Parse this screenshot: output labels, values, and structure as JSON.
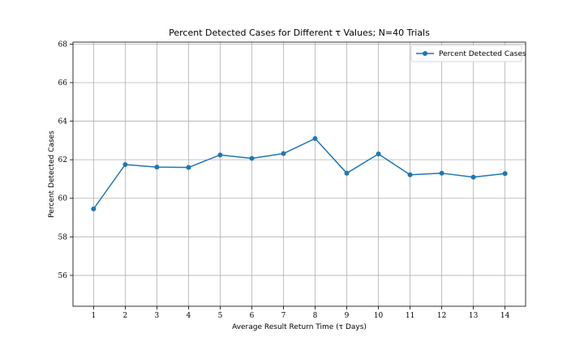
{
  "chart_data": {
    "type": "line",
    "title": "Percent Detected Cases for Different τ Values; N=40 Trials",
    "xlabel": "Average Result Return Time (τ Days)",
    "ylabel": "Percent Detected Cases",
    "x": [
      1,
      2,
      3,
      4,
      5,
      6,
      7,
      8,
      9,
      10,
      11,
      12,
      13,
      14
    ],
    "series": [
      {
        "name": "Percent Detected Cases",
        "color": "#1f77b4",
        "marker": "circle",
        "values": [
          59.45,
          61.75,
          61.62,
          61.6,
          62.25,
          62.07,
          62.32,
          63.1,
          61.3,
          62.3,
          61.22,
          61.3,
          61.1,
          61.28
        ]
      }
    ],
    "xlim": [
      0.35,
      14.65
    ],
    "ylim": [
      54.4,
      68.1
    ],
    "xticks": [
      1,
      2,
      3,
      4,
      5,
      6,
      7,
      8,
      9,
      10,
      11,
      12,
      13,
      14
    ],
    "yticks": [
      56,
      58,
      60,
      62,
      64,
      66,
      68
    ],
    "grid": true,
    "legend_position": "top-right"
  }
}
